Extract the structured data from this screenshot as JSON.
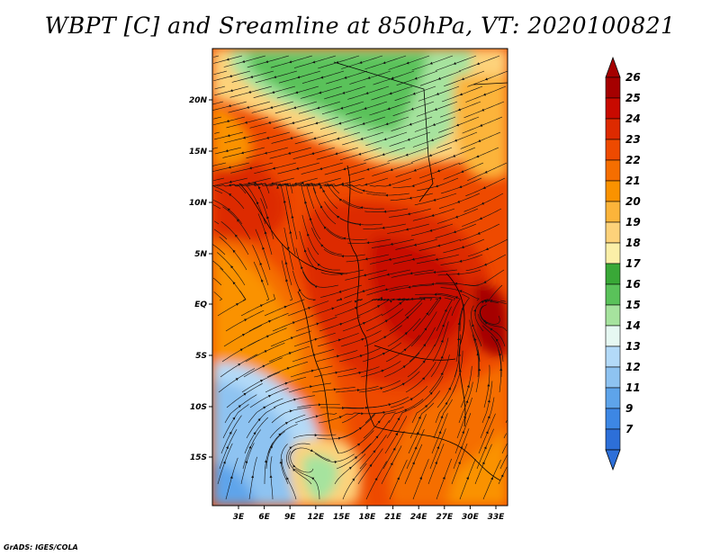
{
  "title": "WBPT [C] and Sreamline at 850hPa, VT: 2020100821",
  "credit": "GrADS: IGES/COLA",
  "map": {
    "lat_labels": [
      "20N",
      "15N",
      "10N",
      "5N",
      "EQ",
      "5S",
      "10S",
      "15S"
    ],
    "lon_labels": [
      "3E",
      "6E",
      "9E",
      "12E",
      "15E",
      "18E",
      "21E",
      "24E",
      "27E",
      "30E",
      "33E"
    ]
  },
  "colorbar": {
    "labels": [
      "26",
      "25",
      "24",
      "23",
      "22",
      "21",
      "20",
      "19",
      "18",
      "17",
      "16",
      "15",
      "14",
      "13",
      "12",
      "11",
      "9",
      "7"
    ],
    "colors": [
      "#a50000",
      "#c80a00",
      "#dd2a00",
      "#ee4a00",
      "#f56e00",
      "#fa9200",
      "#fcb43a",
      "#fdd27a",
      "#fbefa8",
      "#39a837",
      "#5ac25a",
      "#a6e39e",
      "#e6f8f2",
      "#b3daf8",
      "#8ec3f1",
      "#5ea4ea",
      "#3d87e4",
      "#2d6fd8"
    ],
    "arrow_top_color": "#a50000",
    "arrow_bottom_color": "#2d6fd8"
  },
  "field_colors": {
    "cold_blue": "#8ec3f1",
    "deep_blue": "#5ea4ea",
    "light_green": "#a6e39e",
    "green": "#5ac25a",
    "pale_yellow": "#fdd27a",
    "yellow_orange": "#fcb43a",
    "orange": "#f56e00",
    "red_orange": "#ee4a00",
    "red": "#dd2a00",
    "dark_red": "#c80a00"
  }
}
